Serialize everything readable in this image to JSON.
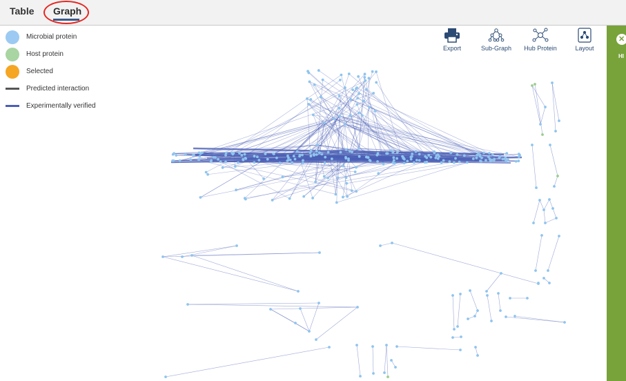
{
  "tabs": [
    {
      "label": "Table",
      "active": false
    },
    {
      "label": "Graph",
      "active": true
    }
  ],
  "legend": [
    {
      "label": "Microbial protein",
      "kind": "dot",
      "color": "#9ccaf2"
    },
    {
      "label": "Host protein",
      "kind": "dot",
      "color": "#a8d5a2"
    },
    {
      "label": "Selected",
      "kind": "dot",
      "color": "#f5a623"
    },
    {
      "label": "Predicted interaction",
      "kind": "line",
      "color": "#555555"
    },
    {
      "label": "Experimentally verified",
      "kind": "line",
      "color": "#4b5fb6"
    }
  ],
  "toolbar": {
    "export_label": "Export",
    "subgraph_label": "Sub-Graph",
    "hub_label": "Hub Protein",
    "layout_label": "Layout",
    "icons": [
      "printer-icon",
      "network-tree-icon",
      "hub-network-icon",
      "layout-tree-icon"
    ]
  },
  "side_panel": {
    "label": "HI",
    "color": "#78a23a"
  },
  "colors": {
    "microbial_node": "#8ec4ef",
    "host_node": "#9ccc8e",
    "edge_verified": "#4b5fb6"
  }
}
